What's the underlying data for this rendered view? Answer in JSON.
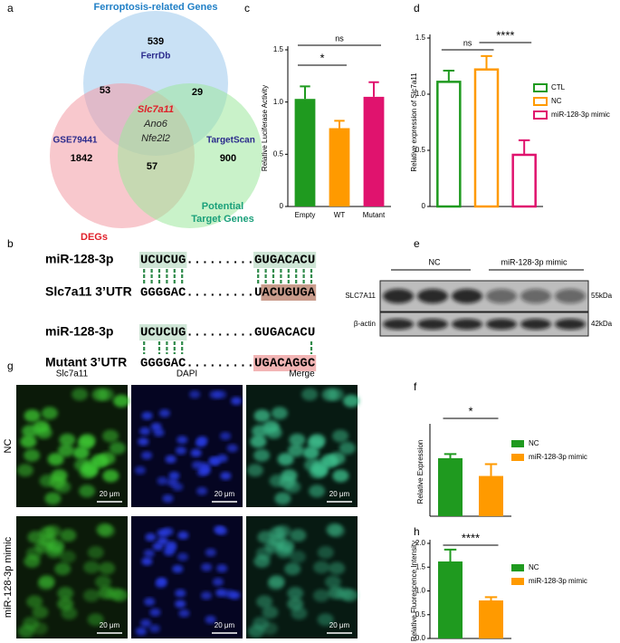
{
  "panel_labels": [
    "a",
    "b",
    "c",
    "d",
    "e",
    "f",
    "g",
    "h"
  ],
  "venn": {
    "sets": [
      {
        "name": [
          "Ferroptosis-related Genes"
        ],
        "source": "FerrDb",
        "count": 539
      },
      {
        "name": [
          "DEGs"
        ],
        "source": "GSE79441",
        "count": 1842
      },
      {
        "name": [
          "Potential",
          "Target Genes"
        ],
        "source": "TargetScan",
        "count": 900
      }
    ],
    "overlaps": [
      53,
      29,
      57
    ],
    "center_genes": [
      "Slc7a11",
      "Ano6",
      "Nfe2l2"
    ]
  },
  "alignment": [
    {
      "label": "miR-128-3p",
      "seq": "UCUCUG.........GUGACACU"
    },
    {
      "label": "Slc7a11 3’UTR",
      "seq": "GGGGAC.........UACUGUGA"
    },
    {
      "label": "miR-128-3p",
      "seq": "UCUCUG.........GUGACACU"
    },
    {
      "label": "Mutant 3’UTR",
      "seq": "GGGGAC.........UGACAGGC"
    }
  ],
  "blot": {
    "groups": [
      "NC",
      "miR-128-3p mimic"
    ],
    "proteins": [
      {
        "name": "SLC7A11",
        "size": "55kDa"
      },
      {
        "name": "β-actin",
        "size": "42kDa"
      }
    ]
  },
  "microscopy": {
    "channels": [
      "Slc7a11",
      "DAPI",
      "Merge"
    ],
    "conditions": [
      "NC",
      "miR-128-3p mimic"
    ],
    "scale_bar": "20 μm"
  },
  "chart_data": [
    {
      "type": "bar",
      "ylabel": "Relative Luciferase Activity",
      "categories": [
        "Empty",
        "WT",
        "Mutant"
      ],
      "values": [
        1.03,
        0.75,
        1.05
      ],
      "errors": [
        0.12,
        0.07,
        0.14
      ],
      "colors": [
        "#1f9a1f",
        "#ff9a00",
        "#e0136e"
      ],
      "ylim": [
        0,
        1.5
      ],
      "yticks": [
        0,
        0.5,
        {
          "value": 1,
          "label": "1.0"
        },
        1.5
      ],
      "annotations": [
        "ns",
        "*"
      ]
    },
    {
      "type": "bar",
      "ylabel": "Relative expression of Slc7a11",
      "bar_style": "outline",
      "series": [
        {
          "name": "CTL",
          "color": "#1f9a1f",
          "values": [
            1.11
          ],
          "errors": [
            0.1
          ]
        },
        {
          "name": "NC",
          "color": "#ff9a00",
          "values": [
            1.22
          ],
          "errors": [
            0.12
          ]
        },
        {
          "name": "miR-128-3p mimic",
          "color": "#e0136e",
          "values": [
            0.46
          ],
          "errors": [
            0.13
          ]
        }
      ],
      "ylim": [
        0,
        1.5
      ],
      "yticks": [
        0,
        0.5,
        {
          "value": 1,
          "label": "1.0"
        },
        1.5
      ],
      "annotations": [
        "ns",
        "****"
      ]
    },
    {
      "type": "bar",
      "ylabel": "Relative Expression",
      "series": [
        {
          "name": "NC",
          "color": "#1f9a1f",
          "values": [
            0.98
          ],
          "errors": [
            0.07
          ]
        },
        {
          "name": "miR-128-3p mimic",
          "color": "#ff9a00",
          "values": [
            0.68
          ],
          "errors": [
            0.2
          ]
        }
      ],
      "ylim": [
        0,
        1.5
      ],
      "annotations": [
        "*"
      ]
    },
    {
      "type": "bar",
      "ylabel": "Relative Fluorescence Intensity",
      "series": [
        {
          "name": "NC",
          "color": "#1f9a1f",
          "values": [
            1.62
          ],
          "errors": [
            0.25
          ]
        },
        {
          "name": "miR-128-3p mimic",
          "color": "#ff9a00",
          "values": [
            0.8
          ],
          "errors": [
            0.07
          ]
        }
      ],
      "ylim": [
        0,
        2
      ],
      "yticks": [
        {
          "value": 0,
          "label": "0.0"
        },
        0.5,
        {
          "value": 1,
          "label": "1.0"
        },
        1.5,
        {
          "value": 2,
          "label": "2.0"
        }
      ],
      "annotations": [
        "****"
      ]
    }
  ]
}
